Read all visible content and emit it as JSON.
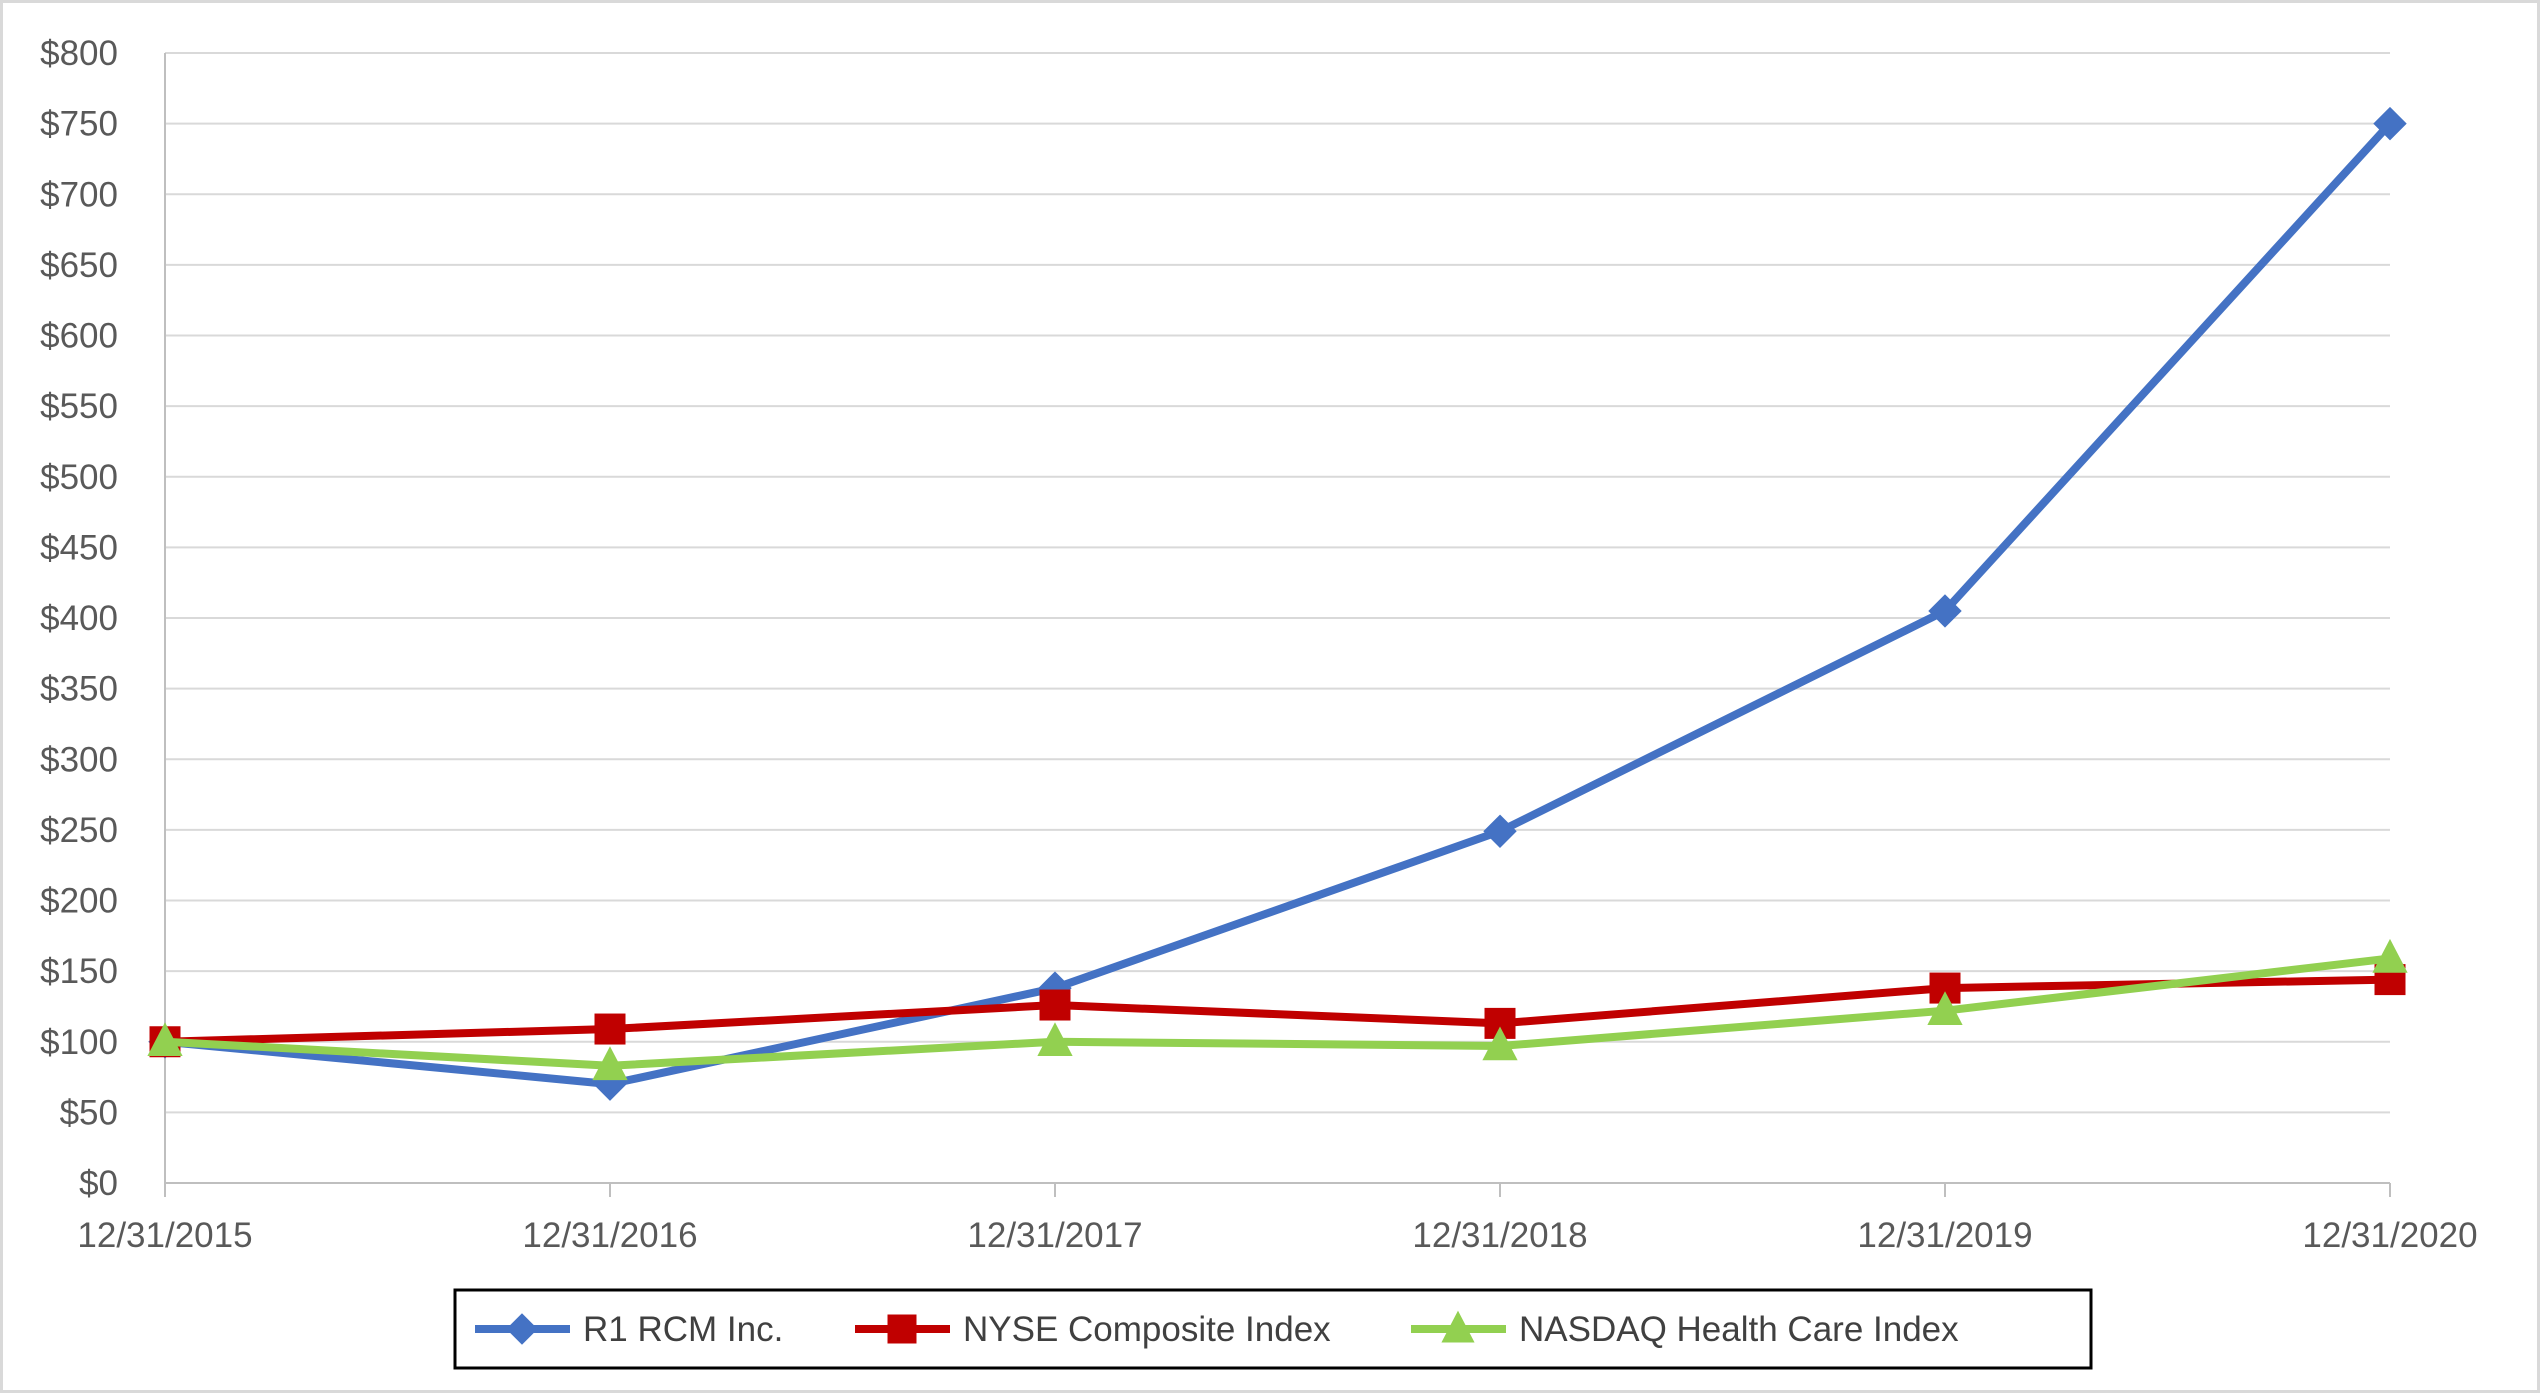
{
  "chart_data": {
    "type": "line",
    "categories": [
      "12/31/2015",
      "12/31/2016",
      "12/31/2017",
      "12/31/2018",
      "12/31/2019",
      "12/31/2020"
    ],
    "ylim": [
      0,
      800
    ],
    "y_ticks": [
      0,
      50,
      100,
      150,
      200,
      250,
      300,
      350,
      400,
      450,
      500,
      550,
      600,
      650,
      700,
      750,
      800
    ],
    "y_tick_labels": [
      "$0",
      "$50",
      "$100",
      "$150",
      "$200",
      "$250",
      "$300",
      "$350",
      "$400",
      "$450",
      "$500",
      "$550",
      "$600",
      "$650",
      "$700",
      "$750",
      "$800"
    ],
    "grid": true,
    "legend_position": "bottom",
    "series": [
      {
        "name": "R1 RCM Inc.",
        "color": "#4472c4",
        "marker": "diamond",
        "values": [
          100,
          70,
          138,
          249,
          405,
          750
        ]
      },
      {
        "name": "NYSE Composite Index",
        "color": "#c00000",
        "marker": "square",
        "values": [
          100,
          109,
          126,
          113,
          138,
          144
        ]
      },
      {
        "name": "NASDAQ Health Care Index",
        "color": "#92d050",
        "marker": "triangle",
        "values": [
          100,
          83,
          100,
          97,
          122,
          159
        ]
      }
    ]
  }
}
